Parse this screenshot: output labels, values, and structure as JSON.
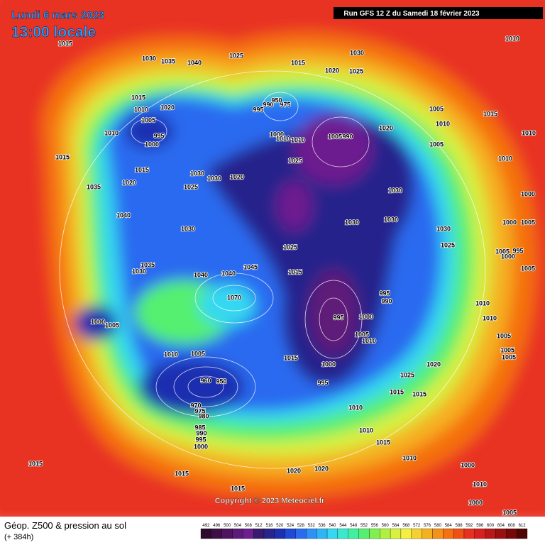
{
  "header": {
    "date": "Lundi 6 mars 2023",
    "time": "13:00 locale",
    "run": "Run GFS 12 Z du Samedi 18 février 2023"
  },
  "footer": {
    "title": "Géop. Z500 & pression au sol",
    "lead": "(+ 384h)",
    "copyright": "Copyright © 2023 Meteociel.fr"
  },
  "scale": {
    "values": [
      492,
      496,
      500,
      504,
      508,
      512,
      516,
      520,
      524,
      528,
      532,
      536,
      540,
      544,
      548,
      552,
      556,
      560,
      564,
      568,
      572,
      576,
      580,
      584,
      588,
      592,
      596,
      600,
      604,
      608,
      612
    ],
    "colors": [
      "#2b0a2e",
      "#3d0f45",
      "#4e1460",
      "#5e1a78",
      "#6d1f8f",
      "#3a1a6e",
      "#28248c",
      "#1c2fb0",
      "#1f4ad6",
      "#2a6bf0",
      "#2f90f5",
      "#2fb5f5",
      "#35d8f0",
      "#3ae8d0",
      "#40f0a0",
      "#55f070",
      "#80f050",
      "#b0f040",
      "#d8f040",
      "#f5f040",
      "#f5d030",
      "#f5b020",
      "#f59018",
      "#f57010",
      "#f05018",
      "#e83020",
      "#d82020",
      "#b81818",
      "#981010",
      "#780808",
      "#500404"
    ]
  },
  "pressure_labels": [
    1015,
    1030,
    1035,
    1040,
    1025,
    1015,
    1030,
    1020,
    1025,
    1010,
    1015,
    1010,
    1020,
    1005,
    995,
    1000,
    1010,
    1015,
    1015,
    995,
    990,
    975,
    950,
    1005,
    1015,
    1010,
    1010,
    1020,
    1005,
    1005,
    990,
    1000,
    1010,
    1010,
    1025,
    1030,
    1030,
    1020,
    1025,
    1020,
    1035,
    1010,
    1030,
    1000,
    1040,
    1030,
    1030,
    1030,
    1030,
    1000,
    1005,
    1025,
    1025,
    1005,
    995,
    1000,
    1005,
    1035,
    1030,
    1045,
    1040,
    1040,
    1015,
    995,
    990,
    1070,
    1010,
    1000,
    995,
    1005,
    1010,
    1010,
    1000,
    1005,
    1005,
    1005,
    1005,
    1010,
    1005,
    1015,
    1000,
    995,
    1025,
    1020,
    960,
    950,
    1015,
    1015,
    970,
    975,
    980,
    1010,
    985,
    990,
    995,
    1000,
    1010,
    1015,
    1010,
    1015,
    1015,
    1020,
    1020,
    1000,
    1010,
    1015,
    1000,
    1005
  ]
}
